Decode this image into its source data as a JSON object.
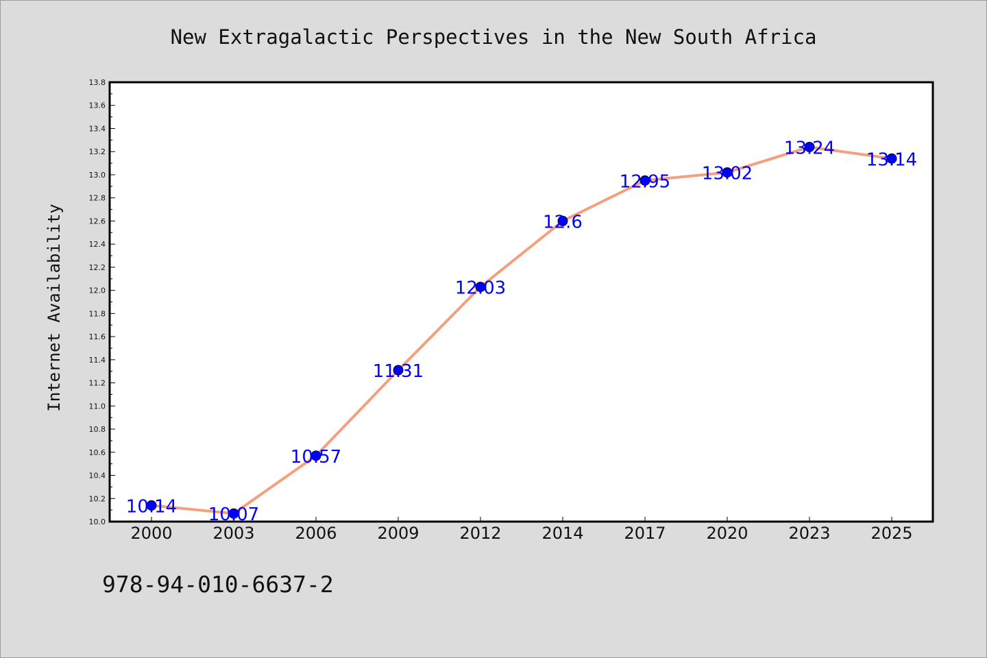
{
  "caption": "978-94-010-6637-2",
  "colors": {
    "background": "#dcdcdc",
    "plot_background": "#ffffff",
    "line": "#f4a07e",
    "marker": "#0000ff",
    "data_label": "#0000ff"
  },
  "chart_data": {
    "type": "line",
    "title": "New Extragalactic Perspectives in the New South Africa",
    "xlabel": "",
    "ylabel": "Internet Availability",
    "categories": [
      "2000",
      "2003",
      "2006",
      "2009",
      "2012",
      "2014",
      "2017",
      "2020",
      "2023",
      "2025"
    ],
    "series": [
      {
        "values": [
          10.14,
          10.07,
          10.57,
          11.31,
          12.03,
          12.6,
          12.95,
          13.02,
          13.24,
          13.14
        ],
        "labels": [
          "10.14",
          "10.07",
          "10.57",
          "11.31",
          "12.03",
          "12.6",
          "12.95",
          "13.02",
          "13.24",
          "13.14"
        ]
      }
    ],
    "ylim": [
      10.0,
      13.8
    ],
    "yticks": [
      "10.0",
      "10.2",
      "10.4",
      "10.6",
      "10.8",
      "11.0",
      "11.2",
      "11.4",
      "11.6",
      "11.8",
      "12.0",
      "12.2",
      "12.4",
      "12.6",
      "12.8",
      "13.0",
      "13.2",
      "13.4",
      "13.6",
      "13.8"
    ],
    "grid": false,
    "legend": "none",
    "markers": "circle"
  }
}
